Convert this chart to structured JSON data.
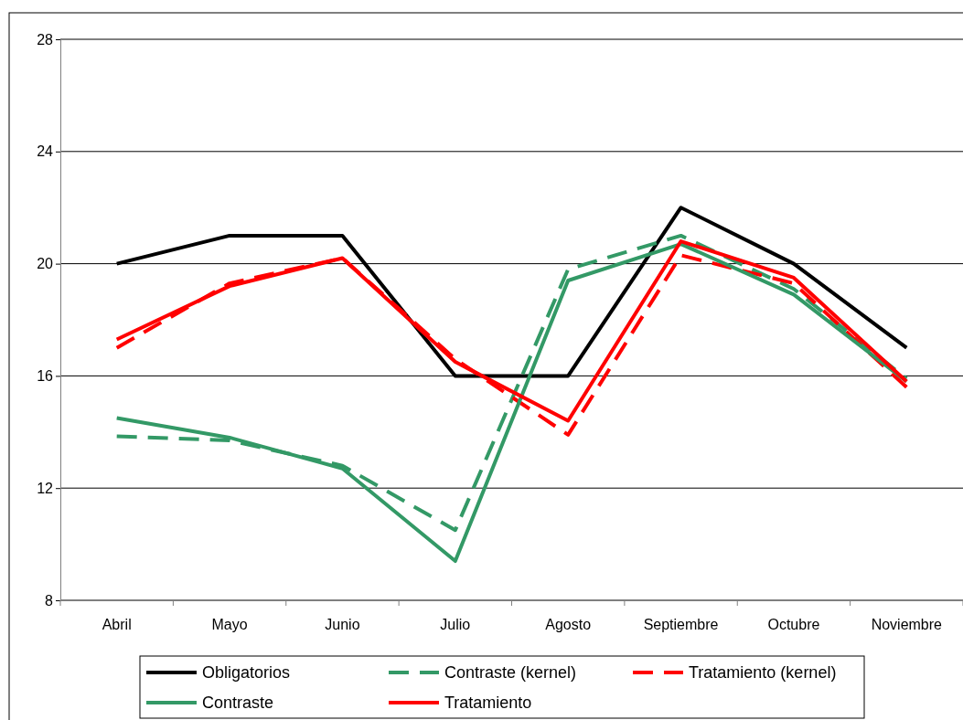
{
  "chart_data": {
    "type": "line",
    "categories": [
      "Abril",
      "Mayo",
      "Junio",
      "Julio",
      "Agosto",
      "Septiembre",
      "Octubre",
      "Noviembre"
    ],
    "ylim": [
      8,
      28
    ],
    "yticks": [
      8,
      12,
      16,
      20,
      24,
      28
    ],
    "grid": "y",
    "legend": "bottom",
    "marker": "none",
    "series": [
      {
        "name": "Obligatorios",
        "color": "#000000",
        "line_style": "solid",
        "values": [
          20,
          21,
          21,
          16,
          16,
          22,
          20,
          17
        ]
      },
      {
        "name": "Contraste (kernel)",
        "color": "#339966",
        "line_style": "dashed",
        "values": [
          13.85,
          13.7,
          12.8,
          10.5,
          19.8,
          21.0,
          19.1,
          15.9
        ]
      },
      {
        "name": "Tratamiento (kernel)",
        "color": "#ff0000",
        "line_style": "dashed",
        "values": [
          17.0,
          19.3,
          20.2,
          16.6,
          13.9,
          20.3,
          19.3,
          15.6
        ]
      },
      {
        "name": "Contraste",
        "color": "#339966",
        "line_style": "solid",
        "values": [
          14.5,
          13.8,
          12.7,
          9.4,
          19.4,
          20.7,
          18.9,
          15.8
        ]
      },
      {
        "name": "Tratamiento",
        "color": "#ff0000",
        "line_style": "solid",
        "values": [
          17.3,
          19.2,
          20.2,
          16.5,
          14.4,
          20.8,
          19.5,
          15.8
        ]
      }
    ]
  }
}
